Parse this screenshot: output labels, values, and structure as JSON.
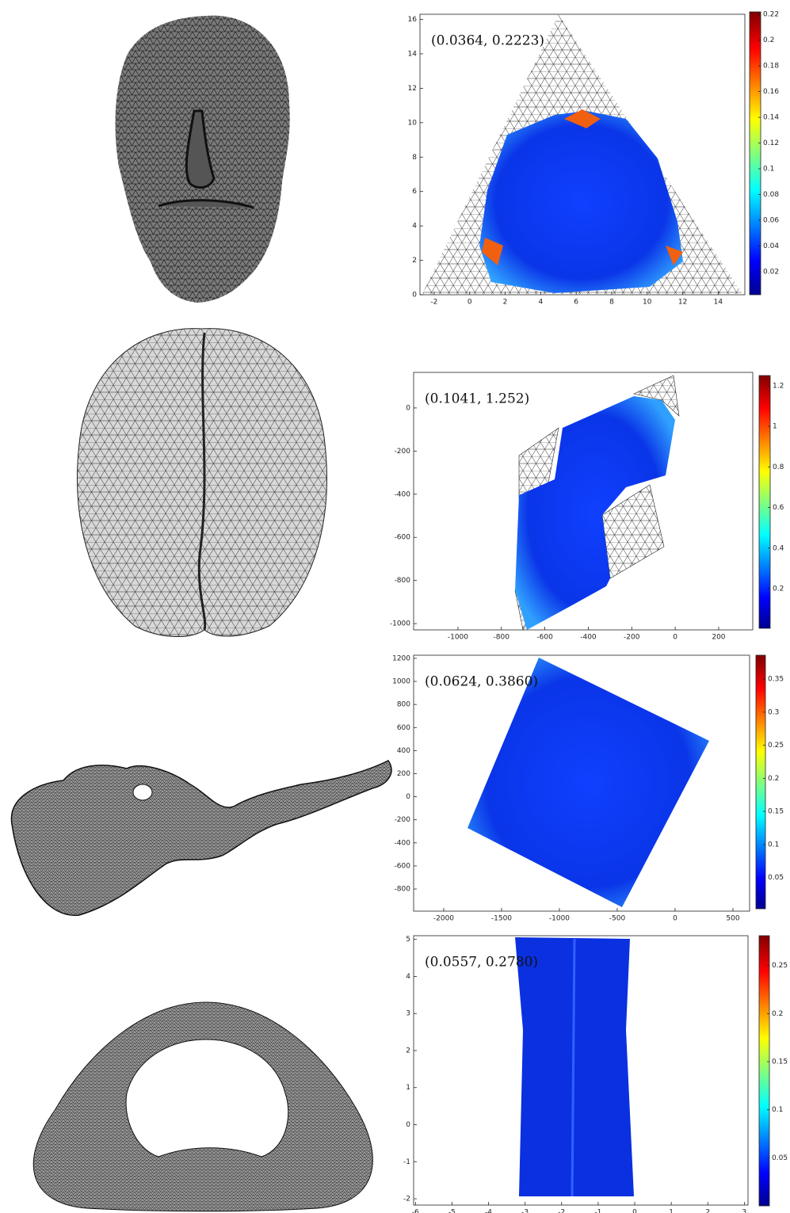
{
  "panels": [
    {
      "annotation": "(0.0364, 0.2223)",
      "xlim": [
        -2.8,
        15.5
      ],
      "ylim": [
        0,
        16.3
      ],
      "xticks": [
        -2,
        0,
        2,
        4,
        6,
        8,
        10,
        12,
        14
      ],
      "yticks": [
        0,
        2,
        4,
        6,
        8,
        10,
        12,
        14,
        16
      ],
      "colorbar": {
        "lim": [
          0.002,
          0.222
        ],
        "ticks": [
          0.02,
          0.04,
          0.06,
          0.08,
          0.1,
          0.12,
          0.14,
          0.16,
          0.18,
          0.2,
          0.22
        ]
      }
    },
    {
      "annotation": "(0.1041, 1.252)",
      "xlim": [
        -1204,
        357
      ],
      "ylim": [
        -1029,
        165
      ],
      "xticks": [
        -1000,
        -800,
        -600,
        -400,
        -200,
        0,
        200
      ],
      "yticks": [
        -1000,
        -800,
        -600,
        -400,
        -200,
        0
      ],
      "colorbar": {
        "lim": [
          0.005,
          1.25
        ],
        "ticks": [
          0.2,
          0.4,
          0.6,
          0.8,
          1,
          1.2
        ]
      }
    },
    {
      "annotation": "(0.0624, 0.3860)",
      "xlim": [
        -2260,
        644
      ],
      "ylim": [
        -992,
        1227
      ],
      "xticks": [
        -2000,
        -1500,
        -1000,
        -500,
        0,
        500
      ],
      "yticks": [
        -800,
        -600,
        -400,
        -200,
        0,
        200,
        400,
        600,
        800,
        1000,
        1200
      ],
      "colorbar": {
        "lim": [
          0.003,
          0.386
        ],
        "ticks": [
          0.05,
          0.1,
          0.15,
          0.2,
          0.25,
          0.3,
          0.35
        ]
      }
    },
    {
      "annotation": "(0.0557, 0.2780)",
      "xlim": [
        -6.05,
        3.1
      ],
      "ylim": [
        -2.17,
        5.1
      ],
      "xticks": [
        -6,
        -5,
        -4,
        -3,
        -2,
        -1,
        0,
        1,
        2,
        3
      ],
      "yticks": [
        -2,
        -1,
        0,
        1,
        2,
        3,
        4,
        5
      ],
      "colorbar": {
        "lim": [
          0,
          0.281
        ],
        "ticks": [
          0.05,
          0.1,
          0.15,
          0.2,
          0.25
        ]
      }
    }
  ]
}
